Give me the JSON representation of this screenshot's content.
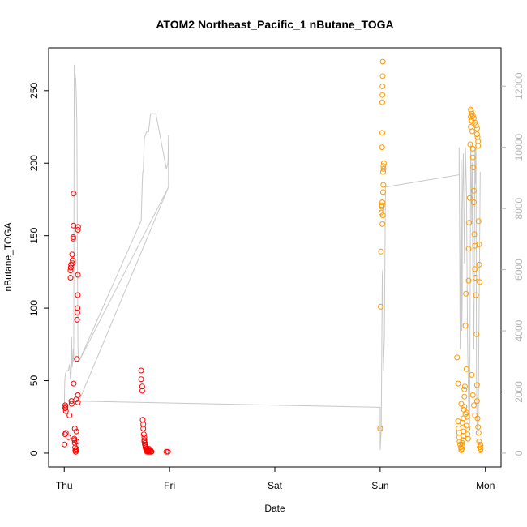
{
  "chart_data": {
    "type": "scatter",
    "title": "ATOM2 Northeast_Pacific_1 nButane_TOGA",
    "xlabel": "Date",
    "ylabel": "nButane_TOGA",
    "x_ticks": [
      "Thu",
      "Fri",
      "Sat",
      "Sun",
      "Mon"
    ],
    "xlim": [
      0,
      4
    ],
    "ylim": [
      0,
      270
    ],
    "y_ticks": [
      0,
      50,
      100,
      150,
      200,
      250
    ],
    "y2lim": [
      0,
      12800
    ],
    "y2_ticks": [
      0,
      2000,
      4000,
      6000,
      8000,
      10000,
      12000
    ],
    "grid": false,
    "series": [
      {
        "color": "#ff0000",
        "marker": "open-circle",
        "points": [
          [
            0.003,
            6
          ],
          [
            0.008,
            13
          ],
          [
            0.01,
            31
          ],
          [
            0.01,
            33
          ],
          [
            0.012,
            32
          ],
          [
            0.015,
            14
          ],
          [
            0.015,
            29
          ],
          [
            0.04,
            11
          ],
          [
            0.05,
            26
          ],
          [
            0.06,
            121
          ],
          [
            0.06,
            126
          ],
          [
            0.063,
            128
          ],
          [
            0.065,
            130
          ],
          [
            0.068,
            36
          ],
          [
            0.07,
            34
          ],
          [
            0.075,
            137
          ],
          [
            0.08,
            131
          ],
          [
            0.08,
            133
          ],
          [
            0.085,
            148
          ],
          [
            0.085,
            149
          ],
          [
            0.088,
            157
          ],
          [
            0.09,
            179
          ],
          [
            0.09,
            48
          ],
          [
            0.095,
            10
          ],
          [
            0.097,
            9
          ],
          [
            0.1,
            7
          ],
          [
            0.1,
            17
          ],
          [
            0.103,
            4
          ],
          [
            0.105,
            2
          ],
          [
            0.11,
            1
          ],
          [
            0.113,
            37
          ],
          [
            0.115,
            15
          ],
          [
            0.118,
            8
          ],
          [
            0.12,
            65
          ],
          [
            0.122,
            92
          ],
          [
            0.124,
            97
          ],
          [
            0.126,
            100
          ],
          [
            0.128,
            109
          ],
          [
            0.13,
            123
          ],
          [
            0.13,
            154
          ],
          [
            0.132,
            156
          ],
          [
            0.13,
            40
          ],
          [
            0.13,
            35
          ],
          [
            0.108,
            1
          ],
          [
            0.112,
            2
          ],
          [
            0.117,
            3
          ],
          [
            0.73,
            57
          ],
          [
            0.73,
            51
          ],
          [
            0.74,
            46
          ],
          [
            0.74,
            43
          ],
          [
            0.745,
            23
          ],
          [
            0.75,
            20
          ],
          [
            0.75,
            17
          ],
          [
            0.755,
            13
          ],
          [
            0.76,
            11
          ],
          [
            0.76,
            9
          ],
          [
            0.765,
            7
          ],
          [
            0.77,
            5
          ],
          [
            0.775,
            4
          ],
          [
            0.78,
            3
          ],
          [
            0.785,
            2
          ],
          [
            0.79,
            2
          ],
          [
            0.795,
            1
          ],
          [
            0.8,
            2
          ],
          [
            0.805,
            3
          ],
          [
            0.81,
            2
          ],
          [
            0.815,
            1
          ],
          [
            0.82,
            2
          ],
          [
            0.825,
            1
          ],
          [
            0.83,
            1
          ],
          [
            0.76,
            8
          ],
          [
            0.765,
            6
          ],
          [
            0.77,
            4
          ],
          [
            0.775,
            3
          ],
          [
            0.78,
            2
          ],
          [
            0.785,
            1
          ],
          [
            0.79,
            3
          ],
          [
            0.8,
            1
          ],
          [
            0.81,
            1
          ],
          [
            0.97,
            1
          ],
          [
            0.985,
            1
          ]
        ]
      },
      {
        "color": "#ff9900",
        "marker": "open-circle",
        "points": [
          [
            3.0,
            17
          ],
          [
            3.005,
            101
          ],
          [
            3.008,
            139
          ],
          [
            3.01,
            166
          ],
          [
            3.012,
            168
          ],
          [
            3.015,
            170
          ],
          [
            3.017,
            171
          ],
          [
            3.02,
            173
          ],
          [
            3.022,
            158
          ],
          [
            3.025,
            164
          ],
          [
            3.027,
            180
          ],
          [
            3.03,
            185
          ],
          [
            3.032,
            196
          ],
          [
            3.035,
            200
          ],
          [
            3.018,
            211
          ],
          [
            3.02,
            221
          ],
          [
            3.02,
            242
          ],
          [
            3.022,
            247
          ],
          [
            3.022,
            253
          ],
          [
            3.024,
            260
          ],
          [
            3.025,
            270
          ],
          [
            3.028,
            194
          ],
          [
            3.03,
            198
          ],
          [
            3.73,
            66
          ],
          [
            3.74,
            48
          ],
          [
            3.74,
            22
          ],
          [
            3.745,
            17
          ],
          [
            3.75,
            14
          ],
          [
            3.75,
            11
          ],
          [
            3.755,
            8
          ],
          [
            3.76,
            6
          ],
          [
            3.765,
            4
          ],
          [
            3.77,
            2
          ],
          [
            3.775,
            3
          ],
          [
            3.78,
            5
          ],
          [
            3.78,
            7
          ],
          [
            3.785,
            9
          ],
          [
            3.79,
            12
          ],
          [
            3.79,
            24
          ],
          [
            3.795,
            30
          ],
          [
            3.8,
            39
          ],
          [
            3.8,
            44
          ],
          [
            3.805,
            46
          ],
          [
            3.81,
            88
          ],
          [
            3.815,
            110
          ],
          [
            3.82,
            58
          ],
          [
            3.82,
            28
          ],
          [
            3.825,
            25
          ],
          [
            3.83,
            17
          ],
          [
            3.83,
            13
          ],
          [
            3.835,
            10
          ],
          [
            3.84,
            119
          ],
          [
            3.84,
            141
          ],
          [
            3.845,
            159
          ],
          [
            3.85,
            176
          ],
          [
            3.855,
            213
          ],
          [
            3.86,
            232
          ],
          [
            3.86,
            237
          ],
          [
            3.865,
            236
          ],
          [
            3.87,
            229
          ],
          [
            3.875,
            222
          ],
          [
            3.88,
            210
          ],
          [
            3.88,
            204
          ],
          [
            3.885,
            197
          ],
          [
            3.89,
            181
          ],
          [
            3.89,
            173
          ],
          [
            3.895,
            151
          ],
          [
            3.9,
            143
          ],
          [
            3.9,
            127
          ],
          [
            3.905,
            121
          ],
          [
            3.91,
            109
          ],
          [
            3.915,
            82
          ],
          [
            3.92,
            47
          ],
          [
            3.92,
            36
          ],
          [
            3.925,
            24
          ],
          [
            3.93,
            18
          ],
          [
            3.935,
            14
          ],
          [
            3.94,
            8
          ],
          [
            3.945,
            4
          ],
          [
            3.95,
            2
          ],
          [
            3.955,
            3
          ],
          [
            3.86,
            225
          ],
          [
            3.865,
            230
          ],
          [
            3.87,
            234
          ],
          [
            3.88,
            233
          ],
          [
            3.89,
            231
          ],
          [
            3.9,
            228
          ],
          [
            3.91,
            226
          ],
          [
            3.92,
            224
          ],
          [
            3.92,
            220
          ],
          [
            3.925,
            218
          ],
          [
            3.93,
            215
          ],
          [
            3.93,
            212
          ],
          [
            3.935,
            160
          ],
          [
            3.94,
            144
          ],
          [
            3.94,
            130
          ],
          [
            3.945,
            118
          ],
          [
            3.95,
            6
          ],
          [
            3.955,
            5
          ],
          [
            3.77,
            34
          ],
          [
            3.78,
            21
          ],
          [
            3.79,
            15
          ],
          [
            3.8,
            32
          ],
          [
            3.81,
            27
          ],
          [
            3.82,
            19
          ],
          [
            3.87,
            54
          ],
          [
            3.88,
            40
          ],
          [
            3.89,
            33
          ],
          [
            3.9,
            26
          ]
        ]
      },
      {
        "color": "#c8c8c8",
        "type": "line",
        "axis": "right",
        "points": [
          [
            0.0,
            1400
          ],
          [
            0.004,
            2300
          ],
          [
            0.008,
            2500
          ],
          [
            0.012,
            2600
          ],
          [
            0.02,
            2700
          ],
          [
            0.04,
            2700
          ],
          [
            0.05,
            2900
          ],
          [
            0.06,
            2400
          ],
          [
            0.065,
            2600
          ],
          [
            0.07,
            3800
          ],
          [
            0.075,
            2800
          ],
          [
            0.08,
            3000
          ],
          [
            0.085,
            3400
          ],
          [
            0.09,
            3000
          ],
          [
            0.095,
            12700
          ],
          [
            0.1,
            12500
          ],
          [
            0.11,
            12200
          ],
          [
            0.115,
            11600
          ],
          [
            0.12,
            10800
          ],
          [
            0.125,
            6600
          ],
          [
            0.13,
            3500
          ],
          [
            0.135,
            3000
          ],
          [
            0.14,
            3000
          ],
          [
            0.73,
            7600
          ],
          [
            0.74,
            8800
          ],
          [
            0.745,
            9200
          ],
          [
            0.75,
            9200
          ],
          [
            0.76,
            10300
          ],
          [
            0.78,
            10500
          ],
          [
            0.8,
            10500
          ],
          [
            0.82,
            11100
          ],
          [
            0.85,
            11100
          ],
          [
            0.87,
            11100
          ],
          [
            0.97,
            9300
          ],
          [
            0.985,
            9500
          ],
          [
            0.99,
            10400
          ],
          [
            0.99,
            8700
          ],
          [
            0.14,
            3000
          ],
          [
            0.99,
            8700
          ],
          [
            0.14,
            1700
          ],
          [
            3.0,
            1500
          ],
          [
            3.0,
            100
          ],
          [
            3.01,
            800
          ],
          [
            3.02,
            5800
          ],
          [
            3.025,
            6000
          ],
          [
            3.03,
            2700
          ],
          [
            3.04,
            3800
          ],
          [
            3.05,
            8700
          ],
          [
            3.05,
            8700
          ],
          [
            3.75,
            9100
          ],
          [
            3.75,
            9100
          ],
          [
            3.75,
            10000
          ],
          [
            3.76,
            3400
          ],
          [
            3.77,
            9600
          ],
          [
            3.775,
            4000
          ],
          [
            3.78,
            5200
          ],
          [
            3.78,
            8000
          ],
          [
            3.79,
            9800
          ],
          [
            3.8,
            6200
          ],
          [
            3.81,
            10000
          ],
          [
            3.82,
            8500
          ],
          [
            3.83,
            3600
          ],
          [
            3.84,
            1500
          ],
          [
            3.85,
            900
          ],
          [
            3.86,
            10100
          ],
          [
            3.87,
            7500
          ],
          [
            3.875,
            9500
          ],
          [
            3.88,
            5800
          ],
          [
            3.89,
            3400
          ],
          [
            3.9,
            10000
          ],
          [
            3.905,
            8800
          ],
          [
            3.91,
            10200
          ],
          [
            3.915,
            2500
          ],
          [
            3.92,
            900
          ],
          [
            3.93,
            600
          ],
          [
            3.95,
            9200
          ]
        ]
      }
    ]
  }
}
